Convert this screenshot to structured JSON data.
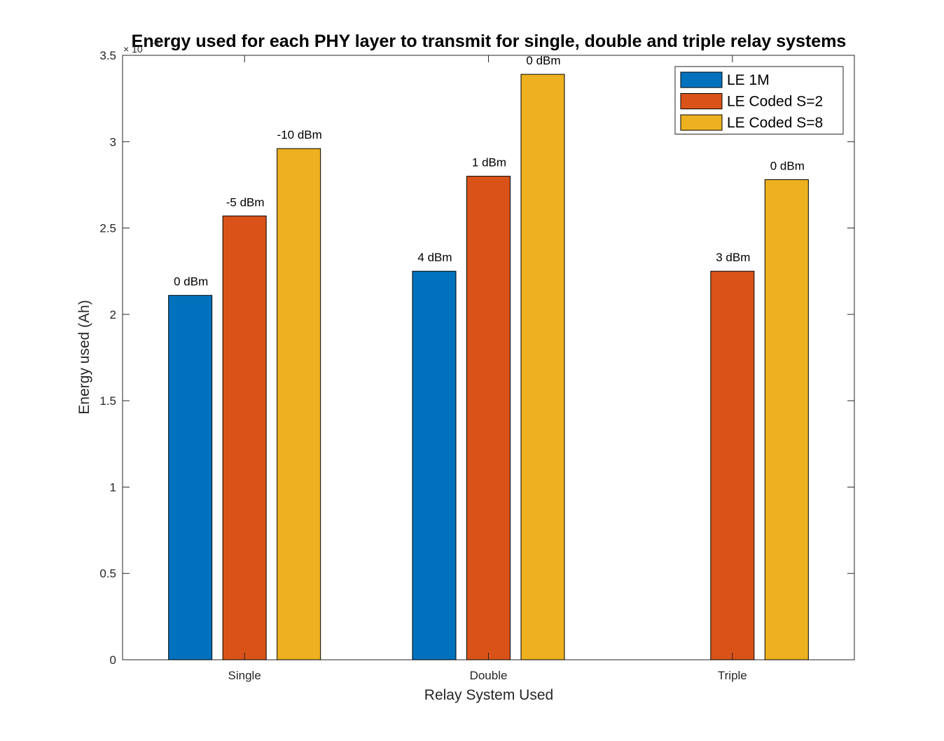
{
  "chart_data": {
    "type": "bar",
    "title": "Energy used for each PHY layer to transmit for single, double and triple relay systems",
    "xlabel": "Relay System Used",
    "ylabel": "Energy used (Ah)",
    "y_exponent": "× 10",
    "y_exponent_power": "-5",
    "categories": [
      "Single",
      "Double",
      "Triple"
    ],
    "ylim": [
      0,
      3.5
    ],
    "yticks": [
      "0",
      "0.5",
      "1",
      "1.5",
      "2",
      "2.5",
      "3",
      "3.5"
    ],
    "ytick_values": [
      0,
      0.5,
      1,
      1.5,
      2,
      2.5,
      3,
      3.5
    ],
    "series": [
      {
        "name": "LE 1M",
        "color": "#0072BD",
        "values": [
          2.11,
          2.25,
          null
        ],
        "labels": [
          "0 dBm",
          "4 dBm",
          ""
        ]
      },
      {
        "name": "LE Coded S=2",
        "color": "#D95319",
        "values": [
          2.57,
          2.8,
          2.25
        ],
        "labels": [
          "-5 dBm",
          "1 dBm",
          "3 dBm"
        ]
      },
      {
        "name": "LE Coded S=8",
        "color": "#EDB120",
        "values": [
          2.96,
          3.39,
          2.78
        ],
        "labels": [
          "-10 dBm",
          "0 dBm",
          "0 dBm"
        ]
      }
    ],
    "legend_position": "top-right",
    "grid": false
  }
}
